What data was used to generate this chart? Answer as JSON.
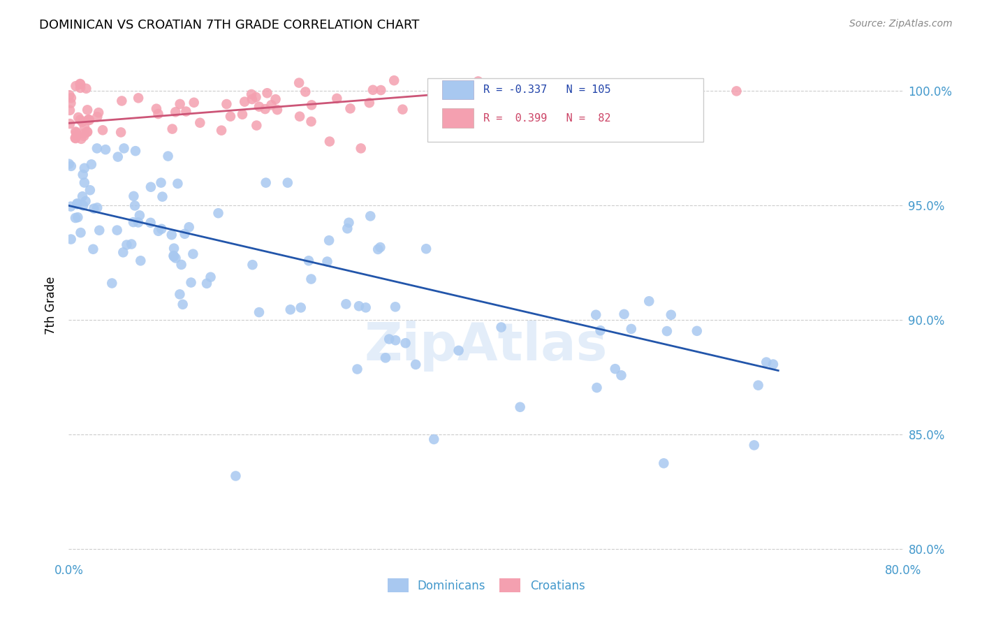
{
  "title": "DOMINICAN VS CROATIAN 7TH GRADE CORRELATION CHART",
  "source": "Source: ZipAtlas.com",
  "ylabel": "7th Grade",
  "xmin": 0.0,
  "xmax": 80.0,
  "ymin": 79.5,
  "ymax": 101.8,
  "blue_R": -0.337,
  "blue_N": 105,
  "pink_R": 0.399,
  "pink_N": 82,
  "blue_color": "#a8c8f0",
  "blue_line_color": "#2255aa",
  "pink_color": "#f4a0b0",
  "pink_line_color": "#cc5577",
  "legend_label_blue": "Dominicans",
  "legend_label_pink": "Croatians",
  "yticks": [
    80.0,
    85.0,
    90.0,
    95.0,
    100.0
  ],
  "ytick_labels": [
    "80.0%",
    "85.0%",
    "90.0%",
    "95.0%",
    "100.0%"
  ],
  "blue_line_x0": 0.0,
  "blue_line_y0": 95.0,
  "blue_line_x1": 68.0,
  "blue_line_y1": 87.8,
  "pink_line_x0": 0.0,
  "pink_line_y0": 98.6,
  "pink_line_x1": 45.0,
  "pink_line_y1": 100.2
}
